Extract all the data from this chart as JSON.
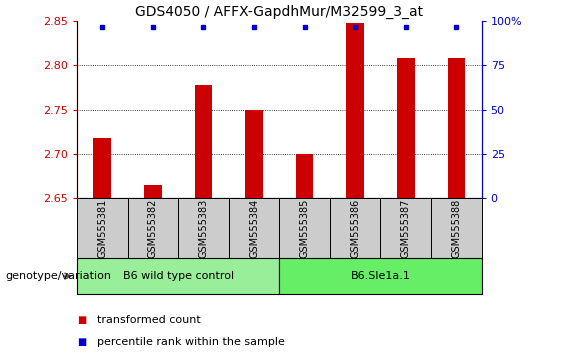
{
  "title": "GDS4050 / AFFX-GapdhMur/M32599_3_at",
  "samples": [
    "GSM555381",
    "GSM555382",
    "GSM555383",
    "GSM555384",
    "GSM555385",
    "GSM555386",
    "GSM555387",
    "GSM555388"
  ],
  "transformed_counts": [
    2.718,
    2.665,
    2.778,
    2.75,
    2.7,
    2.848,
    2.808,
    2.808
  ],
  "ylim_left": [
    2.65,
    2.85
  ],
  "ylim_right": [
    0,
    100
  ],
  "yticks_left": [
    2.65,
    2.7,
    2.75,
    2.8,
    2.85
  ],
  "yticks_right": [
    0,
    25,
    50,
    75,
    100
  ],
  "bar_color": "#cc0000",
  "dot_color": "#0000cc",
  "bar_bottom": 2.65,
  "groups": [
    {
      "label": "B6 wild type control",
      "samples": [
        0,
        1,
        2,
        3
      ],
      "color": "#99ee99"
    },
    {
      "label": "B6.Sle1a.1",
      "samples": [
        4,
        5,
        6,
        7
      ],
      "color": "#66ee66"
    }
  ],
  "group_label": "genotype/variation",
  "legend_items": [
    {
      "color": "#cc0000",
      "label": "transformed count"
    },
    {
      "color": "#0000cc",
      "label": "percentile rank within the sample"
    }
  ],
  "tick_color_left": "#cc0000",
  "tick_color_right": "#0000cc",
  "sample_box_color": "#cccccc",
  "title_fontsize": 10,
  "tick_fontsize": 8,
  "sample_fontsize": 7,
  "group_fontsize": 8,
  "legend_fontsize": 8
}
